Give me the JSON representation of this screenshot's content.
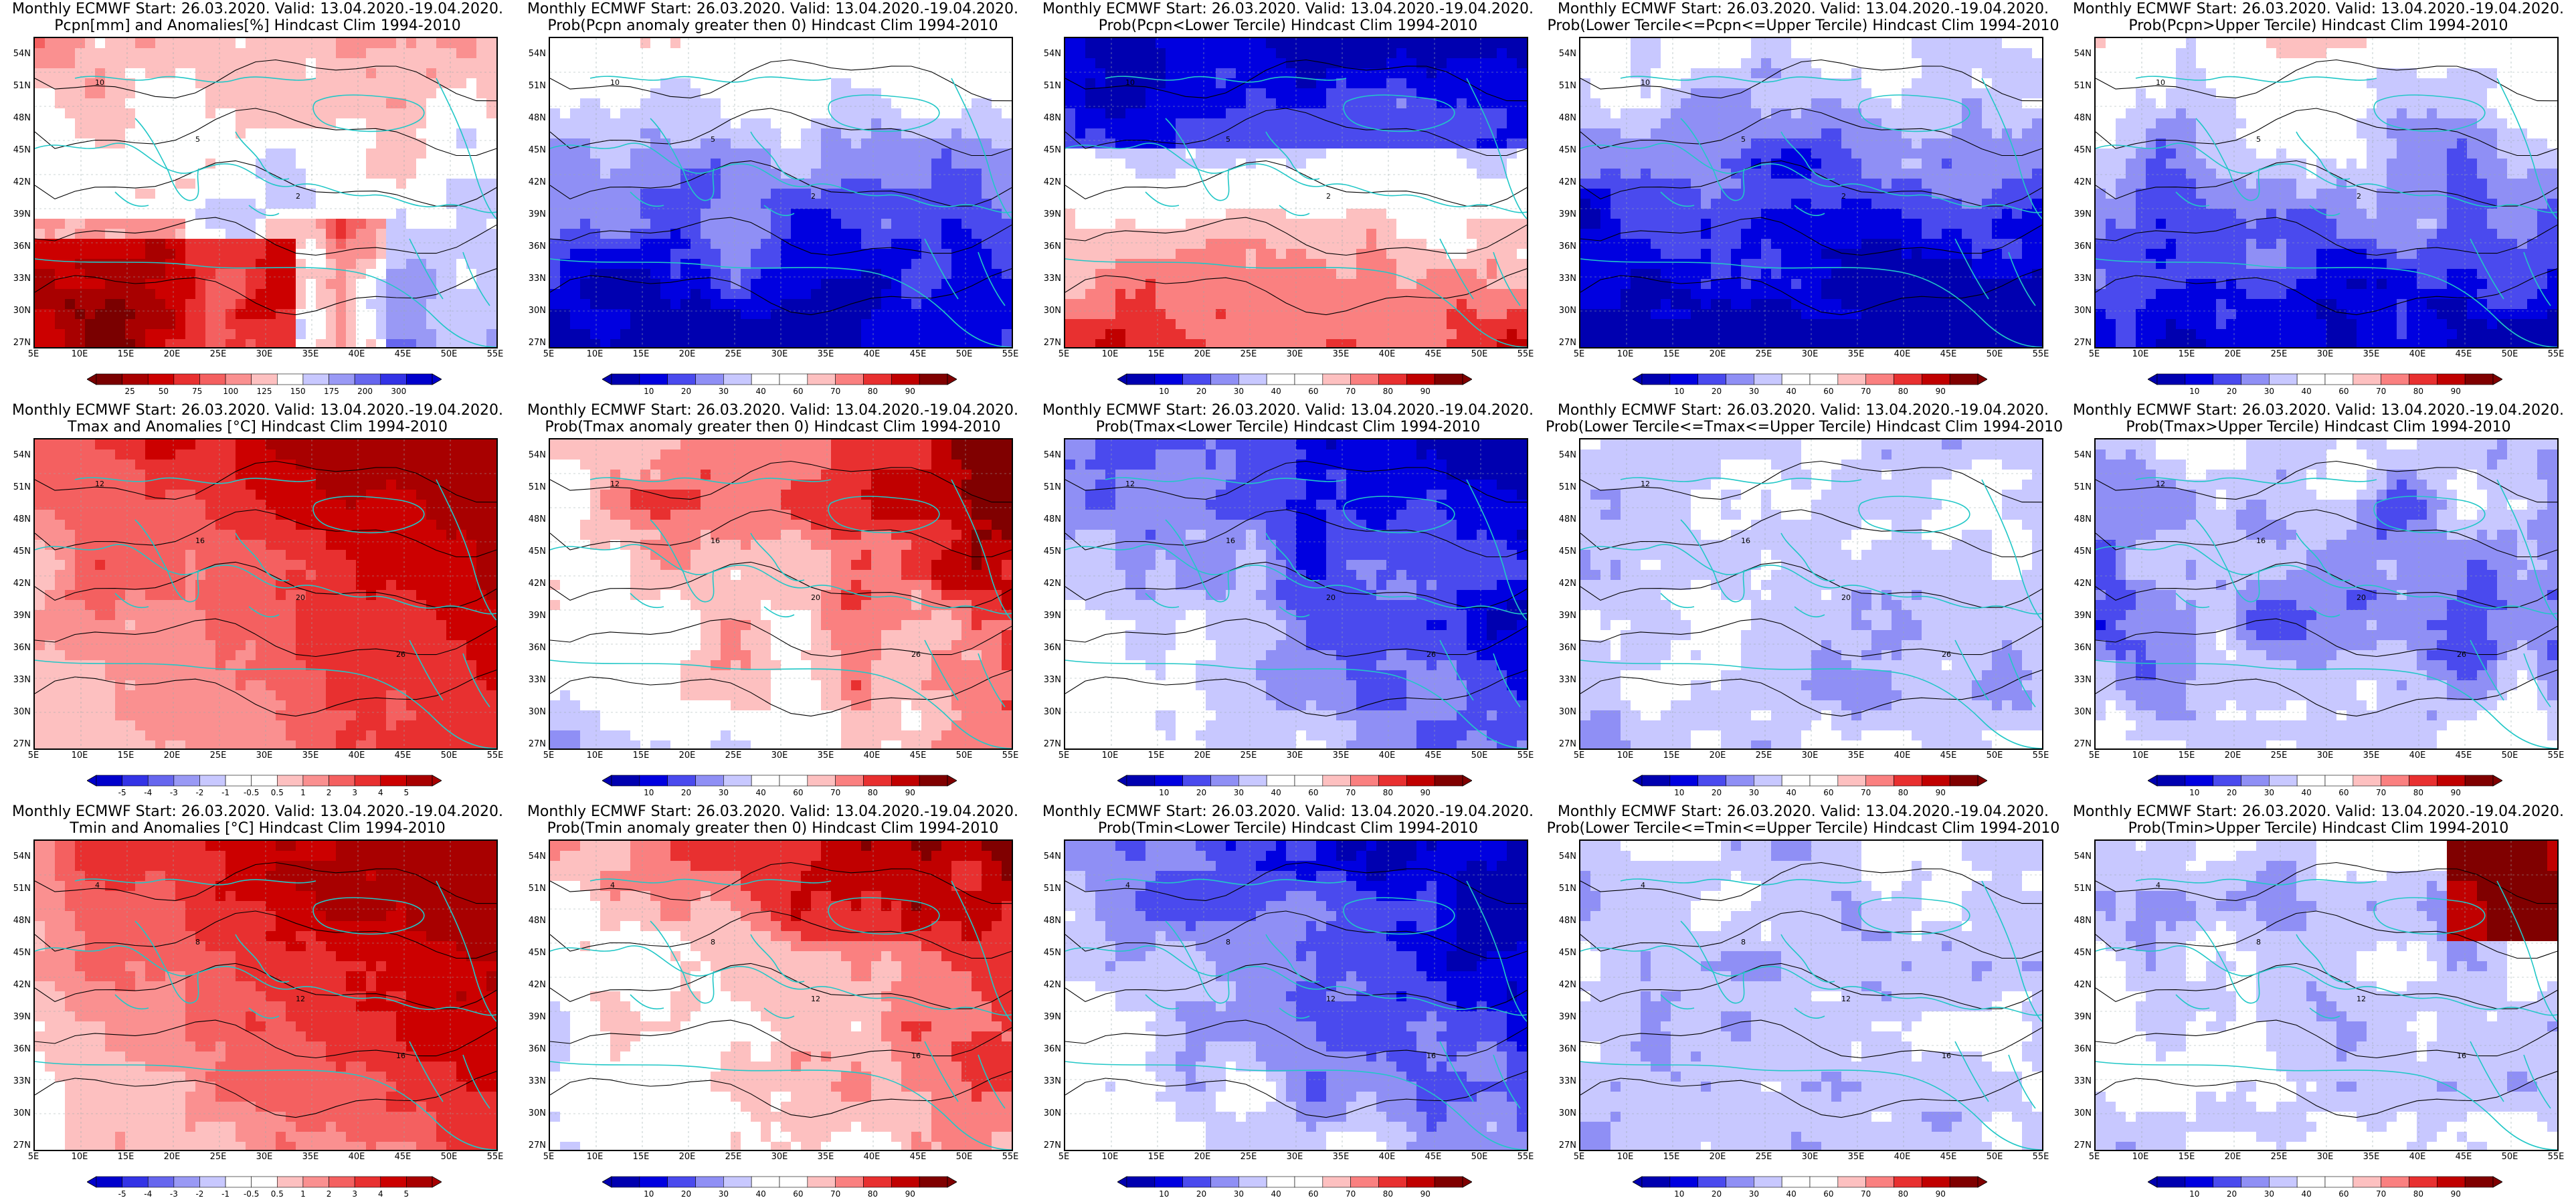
{
  "x_ticks": [
    "5E",
    "10E",
    "15E",
    "20E",
    "25E",
    "30E",
    "35E",
    "40E",
    "45E",
    "50E",
    "55E"
  ],
  "y_ticks": [
    "54N",
    "51N",
    "48N",
    "45N",
    "42N",
    "39N",
    "36N",
    "33N",
    "30N",
    "27N"
  ],
  "colors": {
    "palettes": {
      "precip": [
        "#7a0000",
        "#a80000",
        "#cc0000",
        "#e83030",
        "#f46060",
        "#fa9090",
        "#fdc0c0",
        "#ffffff",
        "#c8c8ff",
        "#9999f5",
        "#6666ee",
        "#3333e6",
        "#0000cc"
      ],
      "anom": [
        "#0000cc",
        "#3333e6",
        "#6666ee",
        "#9999f5",
        "#c8c8ff",
        "#ffffff",
        "#ffffff",
        "#fdc0c0",
        "#fa9090",
        "#f46060",
        "#e83030",
        "#cc0000",
        "#a80000"
      ],
      "prob": [
        "#0000b0",
        "#0000e0",
        "#4a4aee",
        "#8f8ff5",
        "#c8c8ff",
        "#ffffff",
        "#ffffff",
        "#fdc0c0",
        "#fa8080",
        "#e83030",
        "#c00000",
        "#800000"
      ]
    },
    "coast": "#22c7c7",
    "contour": "#000000"
  },
  "panels": [
    {
      "id": "pcpn-anom",
      "title_1": "Monthly ECMWF Start: 26.03.2020. Valid: 13.04.2020.-19.04.2020.",
      "title_2": "Pcpn[mm] and Anomalies[%] Hindcast Clim 1994-2010",
      "palette": "precip",
      "cbar_labels": [
        "25",
        "50",
        "75",
        "100",
        "125",
        "150",
        "175",
        "200",
        "300"
      ],
      "pattern": "pcpn",
      "contours": [
        "10",
        "5",
        "2"
      ]
    },
    {
      "id": "pcpn-gt0",
      "title_1": "Monthly ECMWF Start: 26.03.2020. Valid: 13.04.2020.-19.04.2020.",
      "title_2": "Prob(Pcpn anomaly greater then 0) Hindcast Clim 1994-2010",
      "palette": "prob",
      "cbar_labels": [
        "10",
        "20",
        "30",
        "40",
        "60",
        "70",
        "80",
        "90"
      ],
      "pattern": "south-blue",
      "contours": [
        "10",
        "5",
        "2"
      ]
    },
    {
      "id": "pcpn-lower",
      "title_1": "Monthly ECMWF Start: 26.03.2020. Valid: 13.04.2020.-19.04.2020.",
      "title_2": "Prob(Pcpn<Lower Tercile) Hindcast Clim 1994-2010",
      "palette": "prob",
      "cbar_labels": [
        "10",
        "20",
        "30",
        "40",
        "60",
        "70",
        "80",
        "90"
      ],
      "pattern": "south-red",
      "contours": [
        "10",
        "5",
        "2"
      ]
    },
    {
      "id": "pcpn-mid",
      "title_1": "Monthly ECMWF Start: 26.03.2020. Valid: 13.04.2020.-19.04.2020.",
      "title_2": "Prob(Lower Tercile<=Pcpn<=Upper Tercile) Hindcast Clim 1994-2010",
      "palette": "prob",
      "cbar_labels": [
        "10",
        "20",
        "30",
        "40",
        "60",
        "70",
        "80",
        "90"
      ],
      "pattern": "south-blue-deep",
      "contours": [
        "10",
        "5",
        "2"
      ]
    },
    {
      "id": "pcpn-upper",
      "title_1": "Monthly ECMWF Start: 26.03.2020. Valid: 13.04.2020.-19.04.2020.",
      "title_2": "Prob(Pcpn>Upper Tercile) Hindcast Clim 1994-2010",
      "palette": "prob",
      "cbar_labels": [
        "10",
        "20",
        "30",
        "40",
        "60",
        "70",
        "80",
        "90"
      ],
      "pattern": "south-blue",
      "contours": [
        "10",
        "5",
        "2"
      ]
    },
    {
      "id": "tmax-anom",
      "title_1": "Monthly ECMWF Start: 26.03.2020. Valid: 13.04.2020.-19.04.2020.",
      "title_2": "Tmax and Anomalies [°C] Hindcast Clim 1994-2010",
      "palette": "anom",
      "cbar_labels": [
        "-5",
        "-4",
        "-3",
        "-2",
        "-1",
        "-0.5",
        "0.5",
        "1",
        "2",
        "3",
        "4",
        "5"
      ],
      "pattern": "ne-red",
      "contours": [
        "12",
        "16",
        "20",
        "26"
      ]
    },
    {
      "id": "tmax-gt0",
      "title_1": "Monthly ECMWF Start: 26.03.2020. Valid: 13.04.2020.-19.04.2020.",
      "title_2": "Prob(Tmax anomaly greater then 0) Hindcast Clim 1994-2010",
      "palette": "prob",
      "cbar_labels": [
        "10",
        "20",
        "30",
        "40",
        "60",
        "70",
        "80",
        "90"
      ],
      "pattern": "ne-red-mix",
      "contours": [
        "12",
        "16",
        "20",
        "26"
      ]
    },
    {
      "id": "tmax-lower",
      "title_1": "Monthly ECMWF Start: 26.03.2020. Valid: 13.04.2020.-19.04.2020.",
      "title_2": "Prob(Tmax<Lower Tercile) Hindcast Clim 1994-2010",
      "palette": "prob",
      "cbar_labels": [
        "10",
        "20",
        "30",
        "40",
        "60",
        "70",
        "80",
        "90"
      ],
      "pattern": "ne-blue",
      "contours": [
        "12",
        "16",
        "20",
        "26"
      ]
    },
    {
      "id": "tmax-mid",
      "title_1": "Monthly ECMWF Start: 26.03.2020. Valid: 13.04.2020.-19.04.2020.",
      "title_2": "Prob(Lower Tercile<=Tmax<=Upper Tercile) Hindcast Clim 1994-2010",
      "palette": "prob",
      "cbar_labels": [
        "10",
        "20",
        "30",
        "40",
        "60",
        "70",
        "80",
        "90"
      ],
      "pattern": "light-blue",
      "contours": [
        "12",
        "16",
        "20",
        "26"
      ]
    },
    {
      "id": "tmax-upper",
      "title_1": "Monthly ECMWF Start: 26.03.2020. Valid: 13.04.2020.-19.04.2020.",
      "title_2": "Prob(Tmax>Upper Tercile) Hindcast Clim 1994-2010",
      "palette": "prob",
      "cbar_labels": [
        "10",
        "20",
        "30",
        "40",
        "60",
        "70",
        "80",
        "90"
      ],
      "pattern": "mid-blue",
      "contours": [
        "12",
        "16",
        "20",
        "26"
      ]
    },
    {
      "id": "tmin-anom",
      "title_1": "Monthly ECMWF Start: 26.03.2020. Valid: 13.04.2020.-19.04.2020.",
      "title_2": "Tmin and Anomalies [°C] Hindcast Clim 1994-2010",
      "palette": "anom",
      "cbar_labels": [
        "-5",
        "-4",
        "-3",
        "-2",
        "-1",
        "-0.5",
        "0.5",
        "1",
        "2",
        "3",
        "4",
        "5"
      ],
      "pattern": "ne-red",
      "contours": [
        "4",
        "8",
        "12",
        "16"
      ]
    },
    {
      "id": "tmin-gt0",
      "title_1": "Monthly ECMWF Start: 26.03.2020. Valid: 13.04.2020.-19.04.2020.",
      "title_2": "Prob(Tmin anomaly greater then 0) Hindcast Clim 1994-2010",
      "palette": "prob",
      "cbar_labels": [
        "10",
        "20",
        "30",
        "40",
        "60",
        "70",
        "80",
        "90"
      ],
      "pattern": "ne-red-mix",
      "contours": [
        "4",
        "8",
        "12",
        "16"
      ]
    },
    {
      "id": "tmin-lower",
      "title_1": "Monthly ECMWF Start: 26.03.2020. Valid: 13.04.2020.-19.04.2020.",
      "title_2": "Prob(Tmin<Lower Tercile) Hindcast Clim 1994-2010",
      "palette": "prob",
      "cbar_labels": [
        "10",
        "20",
        "30",
        "40",
        "60",
        "70",
        "80",
        "90"
      ],
      "pattern": "ne-blue",
      "contours": [
        "4",
        "8",
        "12",
        "16"
      ]
    },
    {
      "id": "tmin-mid",
      "title_1": "Monthly ECMWF Start: 26.03.2020. Valid: 13.04.2020.-19.04.2020.",
      "title_2": "Prob(Lower Tercile<=Tmin<=Upper Tercile) Hindcast Clim 1994-2010",
      "palette": "prob",
      "cbar_labels": [
        "10",
        "20",
        "30",
        "40",
        "60",
        "70",
        "80",
        "90"
      ],
      "pattern": "light-blue",
      "contours": [
        "4",
        "8",
        "12",
        "16"
      ]
    },
    {
      "id": "tmin-upper",
      "title_1": "Monthly ECMWF Start: 26.03.2020. Valid: 13.04.2020.-19.04.2020.",
      "title_2": "Prob(Tmin>Upper Tercile) Hindcast Clim 1994-2010",
      "palette": "prob",
      "cbar_labels": [
        "10",
        "20",
        "30",
        "40",
        "60",
        "70",
        "80",
        "90"
      ],
      "pattern": "ne-red-corner",
      "contours": [
        "4",
        "8",
        "12",
        "16"
      ]
    }
  ]
}
